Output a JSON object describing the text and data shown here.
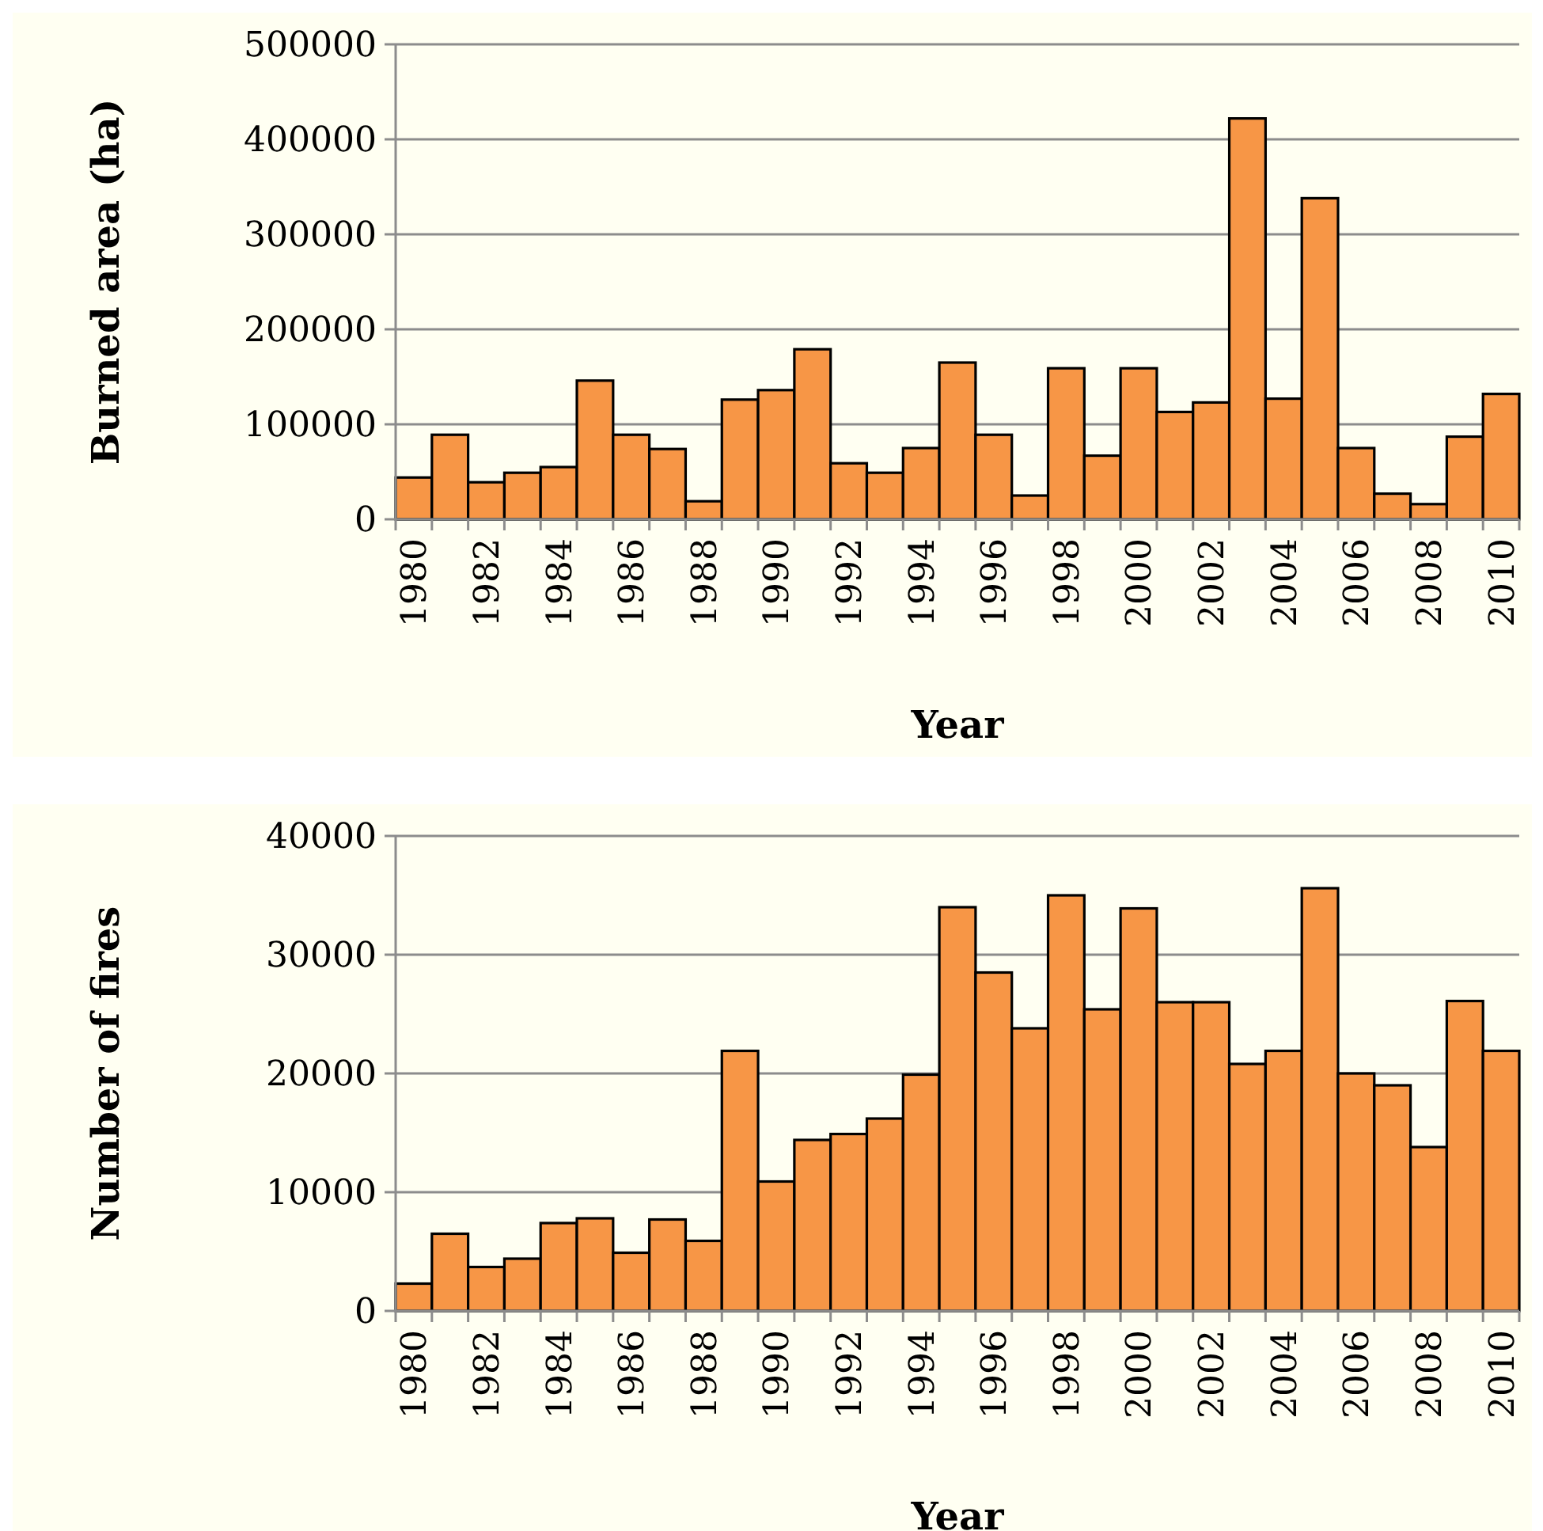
{
  "chart_data": [
    {
      "type": "bar",
      "ylabel": "Burned area (ha)",
      "xlabel": "Year",
      "categories": [
        "1980",
        null,
        "1982",
        null,
        "1984",
        null,
        "1986",
        null,
        "1988",
        null,
        "1990",
        null,
        "1992",
        null,
        "1994",
        null,
        "1996",
        null,
        "1998",
        null,
        "2000",
        null,
        "2002",
        null,
        "2004",
        null,
        "2006",
        null,
        "2008",
        null,
        "2010"
      ],
      "values": [
        44000,
        89000,
        39000,
        49000,
        55000,
        146000,
        89000,
        74000,
        19000,
        126000,
        136000,
        179000,
        59000,
        49000,
        75000,
        165000,
        89000,
        25000,
        159000,
        67000,
        159000,
        113000,
        123000,
        422000,
        127000,
        338000,
        75000,
        27000,
        16000,
        87000,
        132000
      ],
      "color": "#f79646",
      "ylim": [
        0,
        500000
      ],
      "yticks": [
        0,
        100000,
        200000,
        300000,
        400000,
        500000
      ],
      "grid": "y"
    },
    {
      "type": "bar",
      "ylabel": "Number of fires",
      "xlabel": "Year",
      "categories": [
        "1980",
        null,
        "1982",
        null,
        "1984",
        null,
        "1986",
        null,
        "1988",
        null,
        "1990",
        null,
        "1992",
        null,
        "1994",
        null,
        "1996",
        null,
        "1998",
        null,
        "2000",
        null,
        "2002",
        null,
        "2004",
        null,
        "2006",
        null,
        "2008",
        null,
        "2010"
      ],
      "values": [
        2300,
        6500,
        3700,
        4400,
        7400,
        7800,
        4900,
        7700,
        5900,
        21900,
        10900,
        14400,
        14900,
        16200,
        19900,
        34000,
        28500,
        23800,
        35000,
        25400,
        33900,
        26000,
        26000,
        20800,
        21900,
        35600,
        20000,
        19000,
        13800,
        26100,
        21900
      ],
      "color": "#f79646",
      "ylim": [
        0,
        40000
      ],
      "yticks": [
        0,
        10000,
        20000,
        30000,
        40000
      ],
      "grid": "y"
    }
  ]
}
